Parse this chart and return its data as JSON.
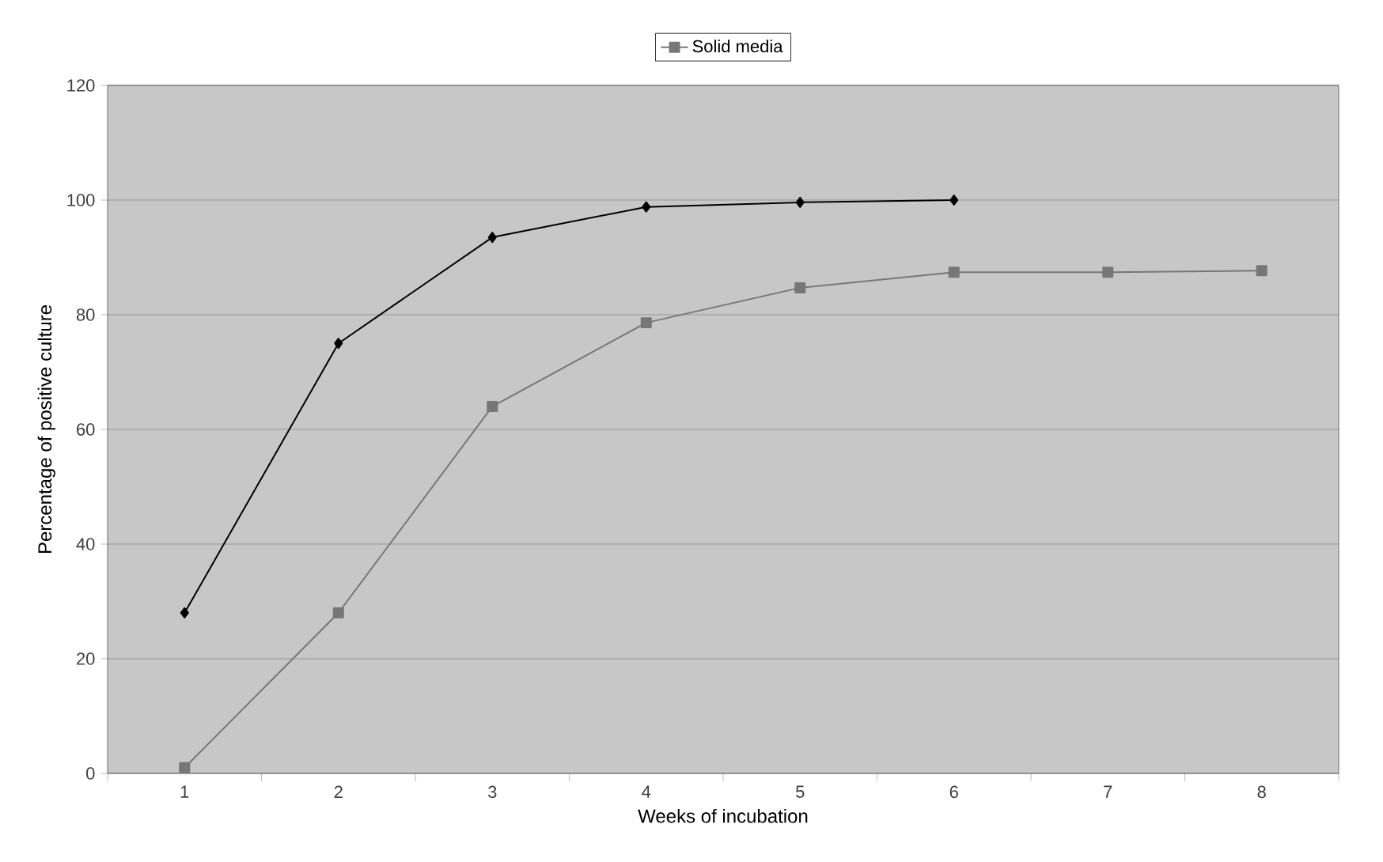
{
  "chart_data": {
    "type": "line",
    "xlabel": "Weeks of incubation",
    "ylabel": "Percentage of positive culture",
    "categories": [
      "1",
      "2",
      "3",
      "4",
      "5",
      "6",
      "7",
      "8"
    ],
    "series": [
      {
        "color": "#000000",
        "marker": "diamond",
        "values": [
          28,
          75,
          93.5,
          98.8,
          99.6,
          100,
          null,
          null
        ]
      },
      {
        "name": "Solid media",
        "color": "#777777",
        "marker": "square",
        "values": [
          1,
          28,
          64,
          78.6,
          84.7,
          87.4,
          87.4,
          87.7
        ]
      }
    ],
    "ylim": [
      0,
      120
    ],
    "yticks": [
      0,
      20,
      40,
      60,
      80,
      100,
      120
    ],
    "grid": "y",
    "legend": "top"
  }
}
